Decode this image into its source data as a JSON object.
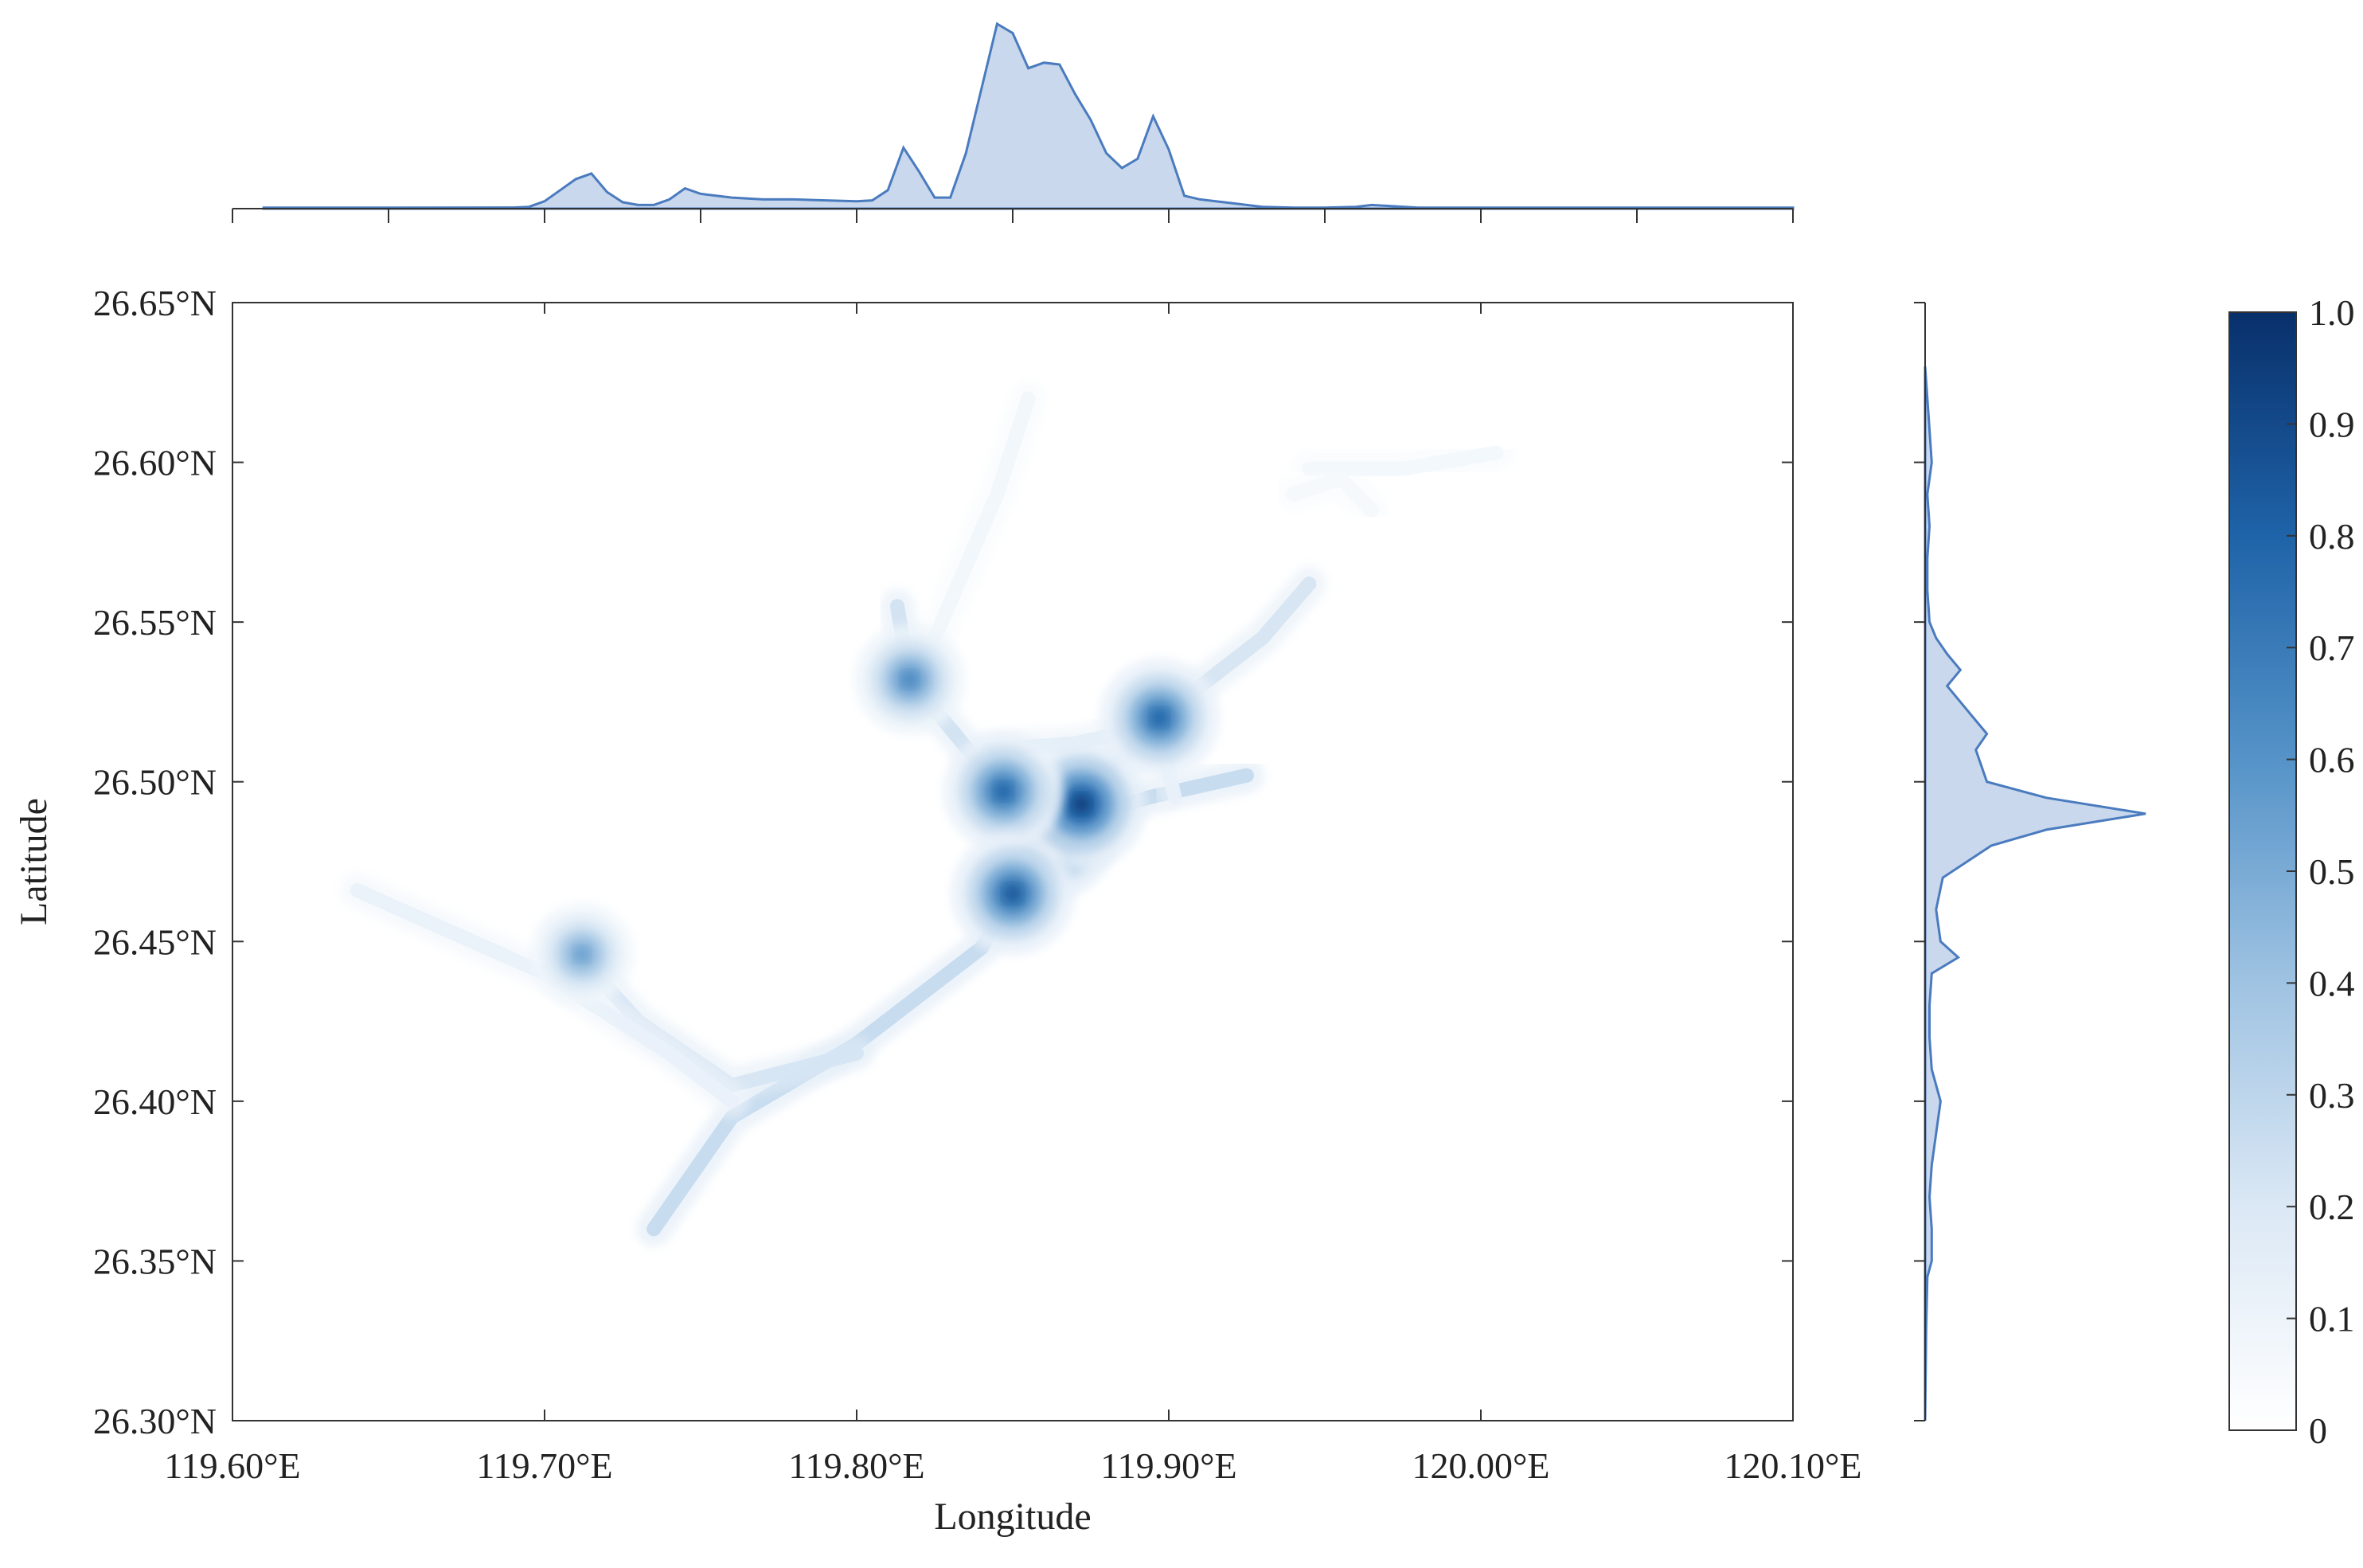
{
  "chart_data": {
    "type": "heatmap",
    "title": "",
    "xlabel": "Longitude",
    "ylabel": "Latitude",
    "xlim": [
      119.6,
      120.1
    ],
    "ylim": [
      26.3,
      26.65
    ],
    "x_ticks": [
      {
        "value": 119.6,
        "label": "119.60°E"
      },
      {
        "value": 119.7,
        "label": "119.70°E"
      },
      {
        "value": 119.8,
        "label": "119.80°E"
      },
      {
        "value": 119.9,
        "label": "119.90°E"
      },
      {
        "value": 120.0,
        "label": "120.00°E"
      },
      {
        "value": 120.1,
        "label": "120.10°E"
      }
    ],
    "y_ticks": [
      {
        "value": 26.3,
        "label": "26.30°N"
      },
      {
        "value": 26.35,
        "label": "26.35°N"
      },
      {
        "value": 26.4,
        "label": "26.40°N"
      },
      {
        "value": 26.45,
        "label": "26.45°N"
      },
      {
        "value": 26.5,
        "label": "26.50°N"
      },
      {
        "value": 26.55,
        "label": "26.55°N"
      },
      {
        "value": 26.6,
        "label": "26.60°N"
      },
      {
        "value": 26.65,
        "label": "26.65°N"
      }
    ],
    "colorbar": {
      "range": [
        0,
        1
      ],
      "ticks": [
        {
          "value": 0,
          "label": "0"
        },
        {
          "value": 0.1,
          "label": "0.1"
        },
        {
          "value": 0.2,
          "label": "0.2"
        },
        {
          "value": 0.3,
          "label": "0.3"
        },
        {
          "value": 0.4,
          "label": "0.4"
        },
        {
          "value": 0.5,
          "label": "0.5"
        },
        {
          "value": 0.6,
          "label": "0.6"
        },
        {
          "value": 0.7,
          "label": "0.7"
        },
        {
          "value": 0.8,
          "label": "0.8"
        },
        {
          "value": 0.9,
          "label": "0.9"
        },
        {
          "value": 1.0,
          "label": "1.0"
        }
      ],
      "color_low": "#ffffff",
      "color_high": "#08306b"
    },
    "fill_color": "#c9d8ec",
    "line_color": "#4a7bbf",
    "hotspots": [
      {
        "lon": 119.862,
        "lat": 26.484,
        "intensity": 1.0
      },
      {
        "lon": 119.872,
        "lat": 26.493,
        "intensity": 0.95
      },
      {
        "lon": 119.847,
        "lat": 26.497,
        "intensity": 0.8
      },
      {
        "lon": 119.85,
        "lat": 26.465,
        "intensity": 0.85
      },
      {
        "lon": 119.897,
        "lat": 26.52,
        "intensity": 0.8
      },
      {
        "lon": 119.817,
        "lat": 26.532,
        "intensity": 0.65
      },
      {
        "lon": 119.712,
        "lat": 26.446,
        "intensity": 0.55
      }
    ],
    "corridors": [
      {
        "intensity": 0.28,
        "points": [
          [
            119.735,
            26.36
          ],
          [
            119.76,
            26.395
          ],
          [
            119.8,
            26.418
          ],
          [
            119.84,
            26.448
          ],
          [
            119.86,
            26.482
          ]
        ]
      },
      {
        "intensity": 0.22,
        "points": [
          [
            119.705,
            26.452
          ],
          [
            119.73,
            26.425
          ],
          [
            119.76,
            26.405
          ],
          [
            119.8,
            26.415
          ]
        ]
      },
      {
        "intensity": 0.12,
        "points": [
          [
            119.64,
            26.466
          ],
          [
            119.7,
            26.44
          ],
          [
            119.74,
            26.415
          ],
          [
            119.76,
            26.4
          ]
        ]
      },
      {
        "intensity": 0.28,
        "points": [
          [
            119.86,
            26.484
          ],
          [
            119.893,
            26.495
          ],
          [
            119.925,
            26.502
          ]
        ]
      },
      {
        "intensity": 0.22,
        "points": [
          [
            119.868,
            26.49
          ],
          [
            119.897,
            26.52
          ],
          [
            119.93,
            26.545
          ],
          [
            119.945,
            26.562
          ]
        ]
      },
      {
        "intensity": 0.24,
        "points": [
          [
            119.84,
            26.505
          ],
          [
            119.817,
            26.532
          ],
          [
            119.813,
            26.555
          ]
        ]
      },
      {
        "intensity": 0.16,
        "points": [
          [
            119.842,
            26.51
          ],
          [
            119.87,
            26.512
          ],
          [
            119.897,
            26.518
          ]
        ]
      },
      {
        "intensity": 0.12,
        "points": [
          [
            119.897,
            26.515
          ],
          [
            119.902,
            26.495
          ]
        ]
      },
      {
        "intensity": 0.08,
        "points": [
          [
            119.825,
            26.545
          ],
          [
            119.845,
            26.59
          ],
          [
            119.855,
            26.62
          ]
        ]
      },
      {
        "intensity": 0.07,
        "points": [
          [
            119.945,
            26.598
          ],
          [
            119.975,
            26.598
          ],
          [
            120.005,
            26.603
          ]
        ]
      },
      {
        "intensity": 0.06,
        "points": [
          [
            119.94,
            26.59
          ],
          [
            119.955,
            26.595
          ],
          [
            119.965,
            26.585
          ]
        ]
      }
    ],
    "marginal_x": {
      "x": [
        119.61,
        119.65,
        119.69,
        119.695,
        119.7,
        119.705,
        119.71,
        119.715,
        119.72,
        119.725,
        119.73,
        119.735,
        119.74,
        119.745,
        119.75,
        119.76,
        119.77,
        119.78,
        119.79,
        119.8,
        119.805,
        119.81,
        119.815,
        119.82,
        119.825,
        119.83,
        119.835,
        119.84,
        119.845,
        119.85,
        119.855,
        119.86,
        119.865,
        119.87,
        119.875,
        119.88,
        119.885,
        119.89,
        119.895,
        119.9,
        119.905,
        119.91,
        119.92,
        119.93,
        119.94,
        119.95,
        119.96,
        119.965,
        119.97,
        119.98,
        119.99,
        120.0,
        120.05,
        120.1
      ],
      "y": [
        0.005,
        0.005,
        0.006,
        0.01,
        0.04,
        0.1,
        0.16,
        0.19,
        0.09,
        0.035,
        0.02,
        0.02,
        0.05,
        0.11,
        0.08,
        0.06,
        0.05,
        0.05,
        0.045,
        0.04,
        0.045,
        0.1,
        0.33,
        0.2,
        0.06,
        0.06,
        0.3,
        0.65,
        1.0,
        0.95,
        0.76,
        0.79,
        0.78,
        0.62,
        0.48,
        0.3,
        0.22,
        0.27,
        0.5,
        0.32,
        0.07,
        0.05,
        0.03,
        0.01,
        0.005,
        0.005,
        0.01,
        0.02,
        0.015,
        0.005,
        0.005,
        0.005,
        0.005,
        0.005
      ]
    },
    "marginal_y": {
      "y": [
        26.3,
        26.33,
        26.345,
        26.35,
        26.36,
        26.37,
        26.38,
        26.4,
        26.41,
        26.42,
        26.43,
        26.44,
        26.445,
        26.45,
        26.46,
        26.47,
        26.48,
        26.485,
        26.49,
        26.495,
        26.5,
        26.51,
        26.515,
        26.52,
        26.525,
        26.53,
        26.535,
        26.54,
        26.545,
        26.55,
        26.56,
        26.57,
        26.58,
        26.59,
        26.6,
        26.62,
        26.63
      ],
      "x": [
        0.0,
        0.005,
        0.01,
        0.03,
        0.03,
        0.02,
        0.03,
        0.07,
        0.03,
        0.02,
        0.02,
        0.03,
        0.15,
        0.07,
        0.05,
        0.08,
        0.3,
        0.55,
        1.0,
        0.55,
        0.28,
        0.23,
        0.28,
        0.22,
        0.16,
        0.1,
        0.16,
        0.1,
        0.05,
        0.02,
        0.01,
        0.01,
        0.02,
        0.01,
        0.03,
        0.01,
        0.0
      ]
    }
  }
}
